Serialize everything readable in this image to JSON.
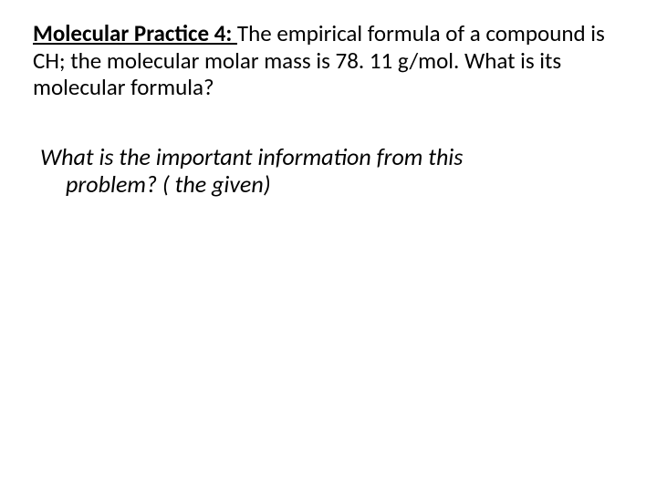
{
  "slide": {
    "title_label": "Molecular Practice 4: ",
    "body_text": "The empirical formula of a compound is CH; the molecular molar mass is 78. 11 g/mol. What is its molecular formula?",
    "question_line1": "What is the important information from this",
    "question_line2": "problem? ( the given)"
  },
  "colors": {
    "background": "#ffffff",
    "text": "#000000"
  },
  "typography": {
    "font_family": "Calibri, Arial, sans-serif",
    "problem_fontsize": 25,
    "question_fontsize": 26
  }
}
